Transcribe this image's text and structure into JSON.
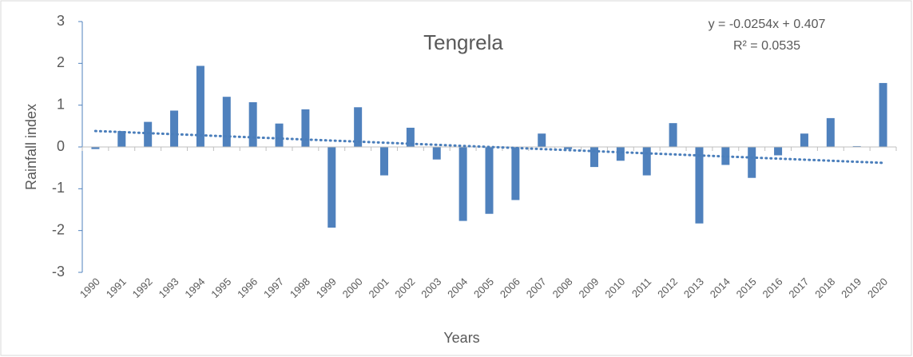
{
  "chart_data": {
    "type": "bar",
    "title": "Tengrela",
    "x_label": "Years",
    "y_label": "Rainfall index",
    "categories": [
      "1990",
      "1991",
      "1992",
      "1993",
      "1994",
      "1995",
      "1996",
      "1997",
      "1998",
      "1999",
      "2000",
      "2001",
      "2002",
      "2003",
      "2004",
      "2005",
      "2006",
      "2007",
      "2008",
      "2009",
      "2010",
      "2011",
      "2012",
      "2013",
      "2014",
      "2015",
      "2016",
      "2017",
      "2018",
      "2019",
      "2020"
    ],
    "values": [
      -0.05,
      0.38,
      0.6,
      0.87,
      1.94,
      1.2,
      1.07,
      0.56,
      0.9,
      -1.93,
      0.95,
      -0.68,
      0.46,
      -0.3,
      -1.77,
      -1.6,
      -1.27,
      0.32,
      -0.05,
      -0.48,
      -0.33,
      -0.68,
      0.57,
      -1.83,
      -0.43,
      -0.74,
      -0.2,
      0.32,
      0.69,
      0.02,
      1.53
    ],
    "color": "#4f81bd",
    "ylim": [
      -3,
      3
    ],
    "yticks": [
      -3,
      -2,
      -1,
      0,
      1,
      2,
      3
    ],
    "trendline": {
      "equation": "y = -0.0254x + 0.407",
      "r_squared": "R² = 0.0535",
      "slope": -0.0254,
      "intercept": 0.407,
      "color": "#4a7ebb"
    }
  }
}
